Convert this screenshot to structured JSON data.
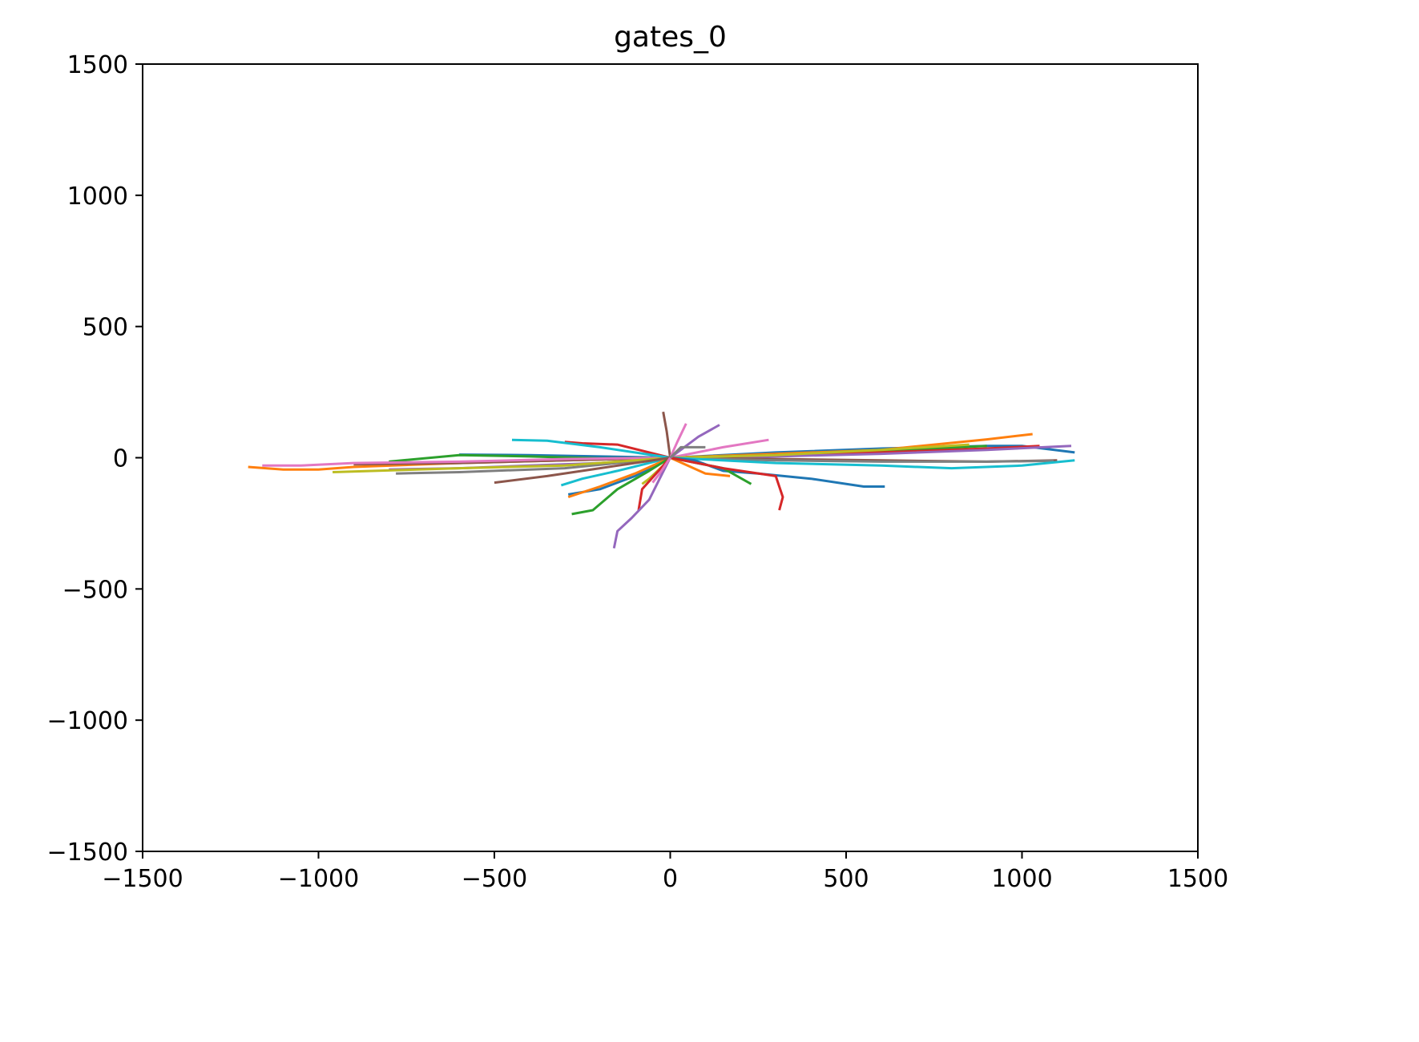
{
  "chart_data": {
    "type": "line",
    "title": "gates_0",
    "xlabel": "",
    "ylabel": "",
    "xlim": [
      -1500,
      1500
    ],
    "ylim": [
      -1500,
      1500
    ],
    "xticks": [
      -1500,
      -1000,
      -500,
      0,
      500,
      1000,
      1500
    ],
    "yticks": [
      -1500,
      -1000,
      -500,
      0,
      500,
      1000,
      1500
    ],
    "xtick_labels": [
      "−1500",
      "−1000",
      "−500",
      "0",
      "500",
      "1000",
      "1500"
    ],
    "ytick_labels": [
      "−1500",
      "−1000",
      "−500",
      "0",
      "500",
      "1000",
      "1500"
    ],
    "grid": false,
    "legend": "none",
    "colors": [
      "#1f77b4",
      "#ff7f0e",
      "#2ca02c",
      "#d62728",
      "#9467bd",
      "#8c564b",
      "#e377c2",
      "#7f7f7f",
      "#bcbd22",
      "#17becf"
    ],
    "series": [
      {
        "x": [
          0,
          -200,
          -400,
          -600
        ],
        "y": [
          0,
          5,
          10,
          12
        ]
      },
      {
        "x": [
          0,
          -300,
          -600,
          -900,
          -1000,
          -1100,
          -1200
        ],
        "y": [
          0,
          -10,
          -20,
          -35,
          -45,
          -45,
          -35
        ]
      },
      {
        "x": [
          0,
          -200,
          -400,
          -600,
          -800
        ],
        "y": [
          0,
          -2,
          5,
          10,
          -15
        ]
      },
      {
        "x": [
          0,
          -150,
          -250,
          -300
        ],
        "y": [
          0,
          50,
          55,
          60
        ]
      },
      {
        "x": [
          0,
          -200,
          -400,
          -600,
          -800
        ],
        "y": [
          0,
          -20,
          -30,
          -40,
          -45
        ]
      },
      {
        "x": [
          0,
          -300,
          -600,
          -900
        ],
        "y": [
          0,
          -10,
          -20,
          -25
        ]
      },
      {
        "x": [
          0,
          -300,
          -600,
          -900,
          -1050,
          -1160
        ],
        "y": [
          0,
          -5,
          -15,
          -20,
          -30,
          -30
        ]
      },
      {
        "x": [
          0,
          -300,
          -600,
          -780
        ],
        "y": [
          0,
          -40,
          -55,
          -60
        ]
      },
      {
        "x": [
          0,
          -300,
          -600,
          -960
        ],
        "y": [
          0,
          -30,
          -40,
          -55
        ]
      },
      {
        "x": [
          0,
          -200,
          -350,
          -450
        ],
        "y": [
          0,
          40,
          65,
          68
        ]
      },
      {
        "x": [
          0,
          300,
          600,
          900,
          1000,
          1150
        ],
        "y": [
          0,
          20,
          35,
          45,
          45,
          20
        ]
      },
      {
        "x": [
          0,
          300,
          600,
          900,
          1030
        ],
        "y": [
          0,
          15,
          30,
          70,
          90
        ]
      },
      {
        "x": [
          0,
          300,
          600,
          900
        ],
        "y": [
          0,
          10,
          25,
          45
        ]
      },
      {
        "x": [
          0,
          300,
          600,
          900,
          1050
        ],
        "y": [
          0,
          10,
          20,
          35,
          45
        ]
      },
      {
        "x": [
          0,
          300,
          600,
          900,
          1140
        ],
        "y": [
          0,
          5,
          15,
          30,
          45
        ]
      },
      {
        "x": [
          0,
          300,
          600,
          900,
          1100
        ],
        "y": [
          0,
          -5,
          -10,
          -15,
          -10
        ]
      },
      {
        "x": [
          0,
          150,
          280
        ],
        "y": [
          0,
          40,
          68
        ]
      },
      {
        "x": [
          0,
          300,
          600,
          900,
          1090
        ],
        "y": [
          0,
          -10,
          -15,
          -15,
          -12
        ]
      },
      {
        "x": [
          0,
          300,
          600,
          850
        ],
        "y": [
          0,
          10,
          30,
          50
        ]
      },
      {
        "x": [
          0,
          300,
          600,
          800,
          1000,
          1150
        ],
        "y": [
          0,
          -20,
          -30,
          -40,
          -30,
          -10
        ]
      },
      {
        "x": [
          0,
          70,
          150,
          250,
          400,
          550,
          610
        ],
        "y": [
          0,
          -10,
          -50,
          -60,
          -80,
          -110,
          -110
        ]
      },
      {
        "x": [
          0,
          100,
          170
        ],
        "y": [
          0,
          -60,
          -70
        ]
      },
      {
        "x": [
          0,
          150,
          230
        ],
        "y": [
          0,
          -40,
          -100
        ]
      },
      {
        "x": [
          0,
          150,
          300,
          320,
          310
        ],
        "y": [
          0,
          -40,
          -70,
          -150,
          -200
        ]
      },
      {
        "x": [
          0,
          80,
          140
        ],
        "y": [
          0,
          80,
          125
        ]
      },
      {
        "x": [
          0,
          -10,
          -20
        ],
        "y": [
          0,
          100,
          175
        ]
      },
      {
        "x": [
          0,
          20,
          45
        ],
        "y": [
          0,
          60,
          130
        ]
      },
      {
        "x": [
          0,
          30,
          100
        ],
        "y": [
          0,
          40,
          40
        ]
      },
      {
        "x": [
          0,
          -20,
          -60,
          -80
        ],
        "y": [
          0,
          -30,
          -80,
          -100
        ]
      },
      {
        "x": [
          0,
          -150,
          -250,
          -310
        ],
        "y": [
          0,
          -50,
          -80,
          -105
        ]
      },
      {
        "x": [
          0,
          -100,
          -200,
          -290
        ],
        "y": [
          0,
          -70,
          -120,
          -140
        ]
      },
      {
        "x": [
          0,
          -100,
          -200,
          -290
        ],
        "y": [
          0,
          -60,
          -110,
          -150
        ]
      },
      {
        "x": [
          0,
          -60,
          -150,
          -220,
          -280
        ],
        "y": [
          0,
          -50,
          -120,
          -200,
          -215
        ]
      },
      {
        "x": [
          0,
          -40,
          -80,
          -90
        ],
        "y": [
          0,
          -60,
          -120,
          -200
        ]
      },
      {
        "x": [
          0,
          -30,
          -60,
          -110,
          -150,
          -160
        ],
        "y": [
          0,
          -80,
          -160,
          -230,
          -280,
          -345
        ]
      },
      {
        "x": [
          0,
          -200,
          -350,
          -500
        ],
        "y": [
          0,
          -40,
          -70,
          -95
        ]
      },
      {
        "x": [
          0,
          -30,
          -50
        ],
        "y": [
          0,
          -60,
          -95
        ]
      }
    ]
  }
}
